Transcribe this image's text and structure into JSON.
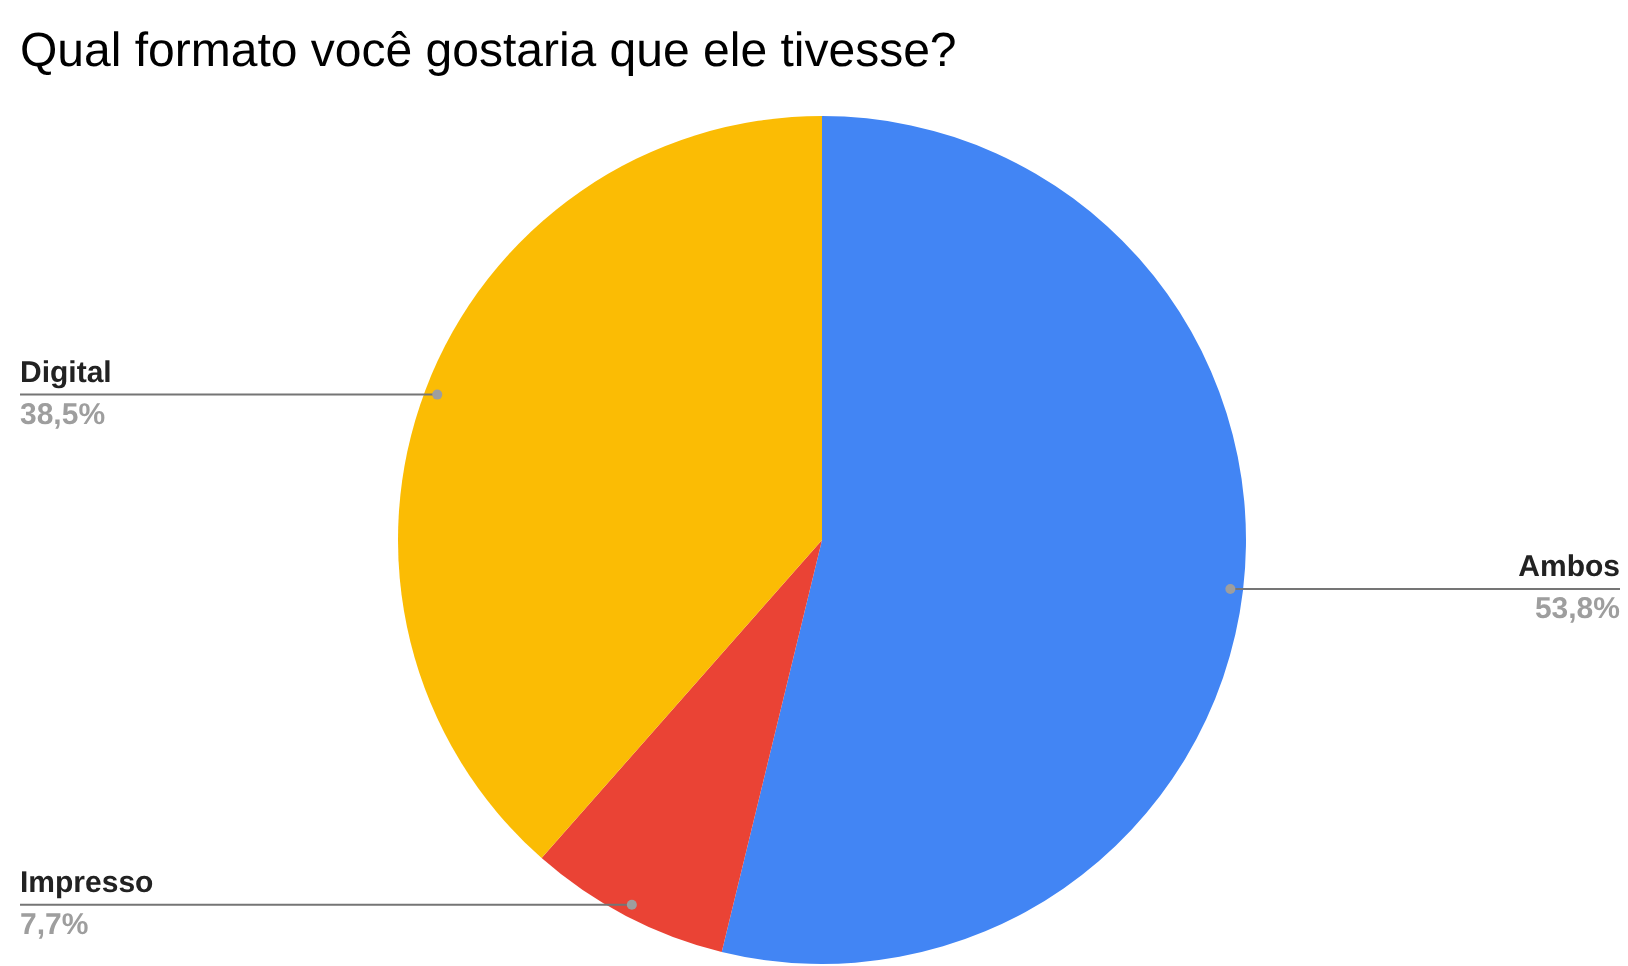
{
  "chart_data": {
    "type": "pie",
    "title": "Qual formato você gostaria que ele tivesse?",
    "categories": [
      "Ambos",
      "Impresso",
      "Digital"
    ],
    "values": [
      53.8,
      7.7,
      38.5
    ],
    "value_labels": [
      "53,8%",
      "7,7%",
      "38,5%"
    ],
    "colors": [
      "#4285f4",
      "#ea4335",
      "#fbbc04"
    ],
    "legend": false
  }
}
